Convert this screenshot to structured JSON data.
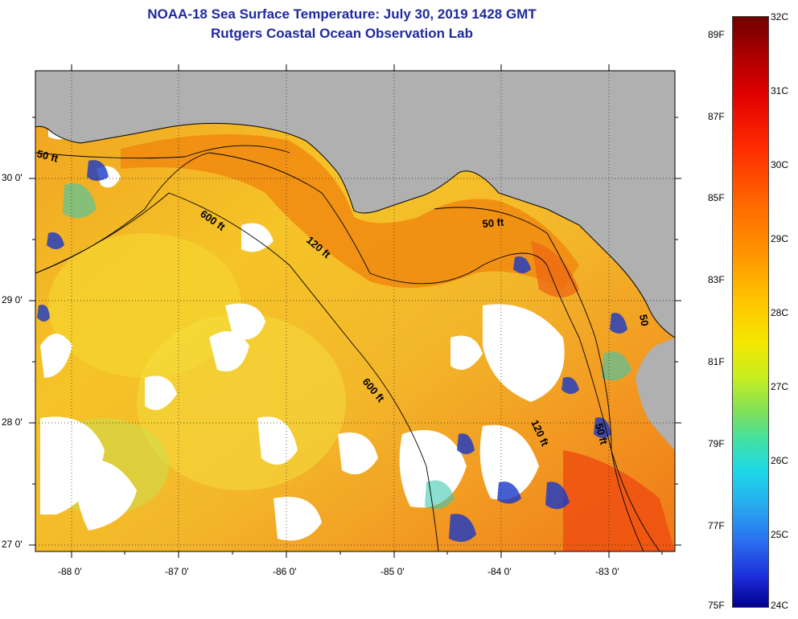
{
  "title_line1": "NOAA-18 Sea Surface Temperature:  July 30, 2019 1428 GMT",
  "title_line2": "Rutgers Coastal Ocean Observation Lab",
  "map": {
    "lon_ticks": [
      "-88 0'",
      "-87 0'",
      "-86 0'",
      "-85 0'",
      "-84 0'",
      "-83 0'"
    ],
    "lat_ticks": [
      "30 0'",
      "29 0'",
      "28 0'",
      "27 0'"
    ],
    "contour_labels": [
      "50 ft",
      "600 ft",
      "120 ft",
      "50 ft",
      "600 ft",
      "120 ft",
      "50 ft",
      "50"
    ]
  },
  "colorbar": {
    "celsius": [
      "32C",
      "31C",
      "30C",
      "29C",
      "28C",
      "27C",
      "26C",
      "25C",
      "24C"
    ],
    "fahrenheit": [
      "89F",
      "87F",
      "85F",
      "83F",
      "81F",
      "79F",
      "77F",
      "75F"
    ]
  },
  "colors": {
    "title": "#1f2a9c",
    "land": "#b0b0b0",
    "cloud": "#ffffff",
    "warm_ocean": "#f28a10",
    "mid_ocean": "#f5cc20",
    "cool_patch": "#1838c8"
  }
}
